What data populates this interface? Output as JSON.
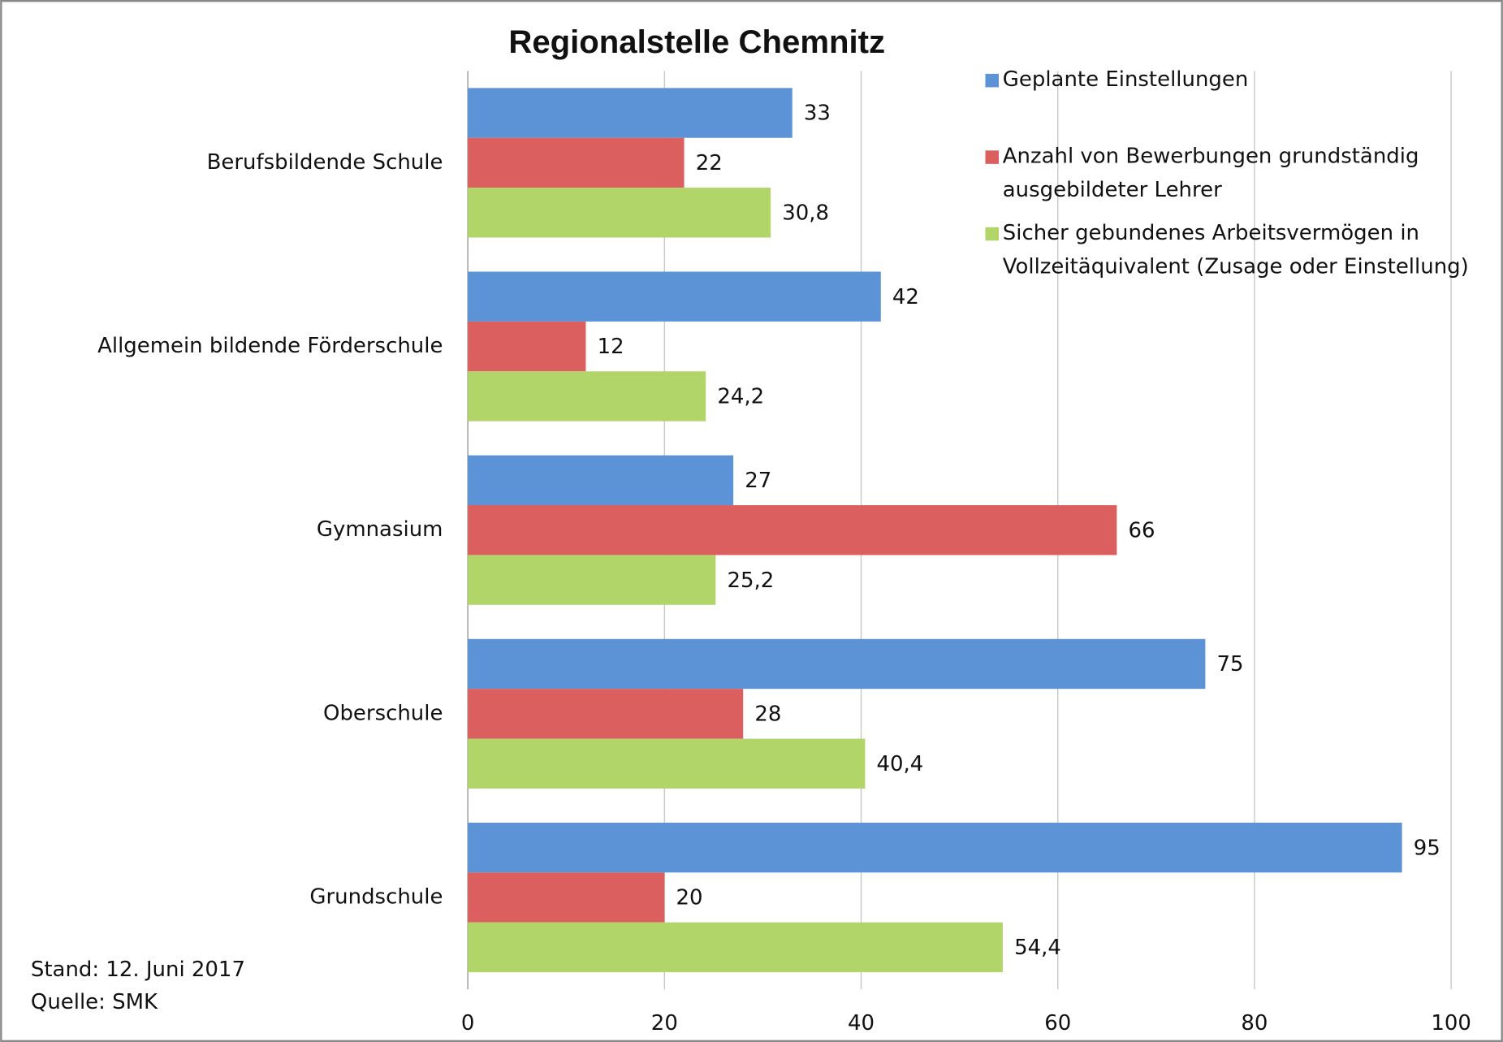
{
  "chart_data": {
    "type": "bar",
    "orientation": "horizontal",
    "title": "Regionalstelle Chemnitz",
    "categories": [
      "Berufsbildende Schule",
      "Allgemein bildende Förderschule",
      "Gymnasium",
      "Oberschule",
      "Grundschule"
    ],
    "series": [
      {
        "name": "Geplante Einstellungen",
        "color": "#5b93d6",
        "values": [
          33,
          42,
          27,
          75,
          95
        ]
      },
      {
        "name": "Anzahl von Bewerbungen grundständig ausgebildeter Lehrer",
        "color": "#db5f5f",
        "values": [
          22,
          12,
          66,
          28,
          20
        ]
      },
      {
        "name": "Sicher gebundenes Arbeitsvermögen in Vollzeitäquivalent (Zusage oder Einstellung)",
        "color": "#b2d56a",
        "values": [
          30.8,
          24.2,
          25.2,
          40.4,
          54.4
        ],
        "value_labels": [
          "30,8",
          "24,2",
          "25,2",
          "40,4",
          "54,4"
        ]
      }
    ],
    "xlim": [
      0,
      100
    ],
    "xticks": [
      0,
      20,
      40,
      60,
      80,
      100
    ],
    "grid": true,
    "legend": "upper right",
    "annotations": [
      "Stand: 12. Juni 2017",
      "Quelle: SMK"
    ]
  }
}
